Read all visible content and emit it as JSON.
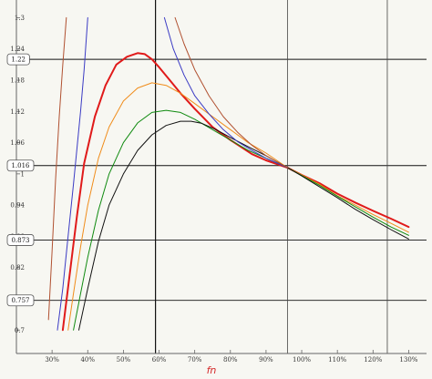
{
  "chart_data": {
    "type": "line",
    "xlabel": "fn",
    "ylabel": "",
    "title": "",
    "xlim": [
      0.2,
      1.35
    ],
    "ylim": [
      0.655,
      1.32
    ],
    "x_ticks": [
      {
        "v": 0.3,
        "label": "30%"
      },
      {
        "v": 0.4,
        "label": "40%"
      },
      {
        "v": 0.5,
        "label": "50%"
      },
      {
        "v": 0.6,
        "label": "60%"
      },
      {
        "v": 0.7,
        "label": "70%"
      },
      {
        "v": 0.8,
        "label": "80%"
      },
      {
        "v": 0.9,
        "label": "90%"
      },
      {
        "v": 1.0,
        "label": "100%"
      },
      {
        "v": 1.1,
        "label": "110%"
      },
      {
        "v": 1.2,
        "label": "120%"
      },
      {
        "v": 1.3,
        "label": "130%"
      }
    ],
    "y_ticks": [
      {
        "v": 0.7,
        "label": "0.7"
      },
      {
        "v": 0.76,
        "label": "0.76"
      },
      {
        "v": 0.82,
        "label": "0.82"
      },
      {
        "v": 0.88,
        "label": "0.88"
      },
      {
        "v": 0.94,
        "label": "0.94"
      },
      {
        "v": 1.0,
        "label": "1"
      },
      {
        "v": 1.06,
        "label": "1.06"
      },
      {
        "v": 1.12,
        "label": "1.12"
      },
      {
        "v": 1.18,
        "label": "1.18"
      },
      {
        "v": 1.24,
        "label": "1.24"
      },
      {
        "v": 1.3,
        "label": "1.3"
      }
    ],
    "marked_y": [
      {
        "v": 1.22,
        "label": "1.22"
      },
      {
        "v": 1.016,
        "label": "1.016"
      },
      {
        "v": 0.873,
        "label": "0.873"
      },
      {
        "v": 0.757,
        "label": "0.757"
      }
    ],
    "marked_x": [
      0.59,
      0.96,
      1.24
    ],
    "grid": false,
    "series": [
      {
        "color": "#b05030",
        "x": [
          0.29,
          0.3,
          0.31,
          0.32,
          0.33,
          0.34
        ],
        "y": [
          0.72,
          0.85,
          0.99,
          1.11,
          1.21,
          1.3
        ]
      },
      {
        "color": "#3b3bc4",
        "x": [
          0.315,
          0.33,
          0.345,
          0.36,
          0.37,
          0.38,
          0.39,
          0.4
        ],
        "y": [
          0.7,
          0.78,
          0.88,
          0.98,
          1.05,
          1.12,
          1.2,
          1.3
        ]
      },
      {
        "color": "#e01a1a",
        "x": [
          0.33,
          0.35,
          0.37,
          0.39,
          0.42,
          0.45,
          0.48,
          0.51,
          0.54,
          0.56,
          0.58,
          0.6,
          0.63,
          0.66,
          0.7,
          0.75,
          0.8,
          0.86,
          0.9,
          0.96,
          1.0,
          1.05,
          1.1,
          1.15,
          1.2,
          1.25,
          1.3
        ],
        "y": [
          0.7,
          0.81,
          0.92,
          1.02,
          1.11,
          1.17,
          1.21,
          1.225,
          1.232,
          1.23,
          1.22,
          1.205,
          1.18,
          1.155,
          1.125,
          1.09,
          1.065,
          1.038,
          1.026,
          1.012,
          0.998,
          0.982,
          0.962,
          0.945,
          0.929,
          0.914,
          0.898
        ]
      },
      {
        "color": "#f08c1a",
        "x": [
          0.345,
          0.36,
          0.38,
          0.4,
          0.43,
          0.46,
          0.5,
          0.54,
          0.58,
          0.62,
          0.66,
          0.7,
          0.75,
          0.8,
          0.85,
          0.9,
          0.96,
          1.0,
          1.05,
          1.1,
          1.15,
          1.2,
          1.25,
          1.3
        ],
        "y": [
          0.7,
          0.77,
          0.86,
          0.94,
          1.03,
          1.09,
          1.14,
          1.165,
          1.175,
          1.17,
          1.155,
          1.135,
          1.11,
          1.085,
          1.06,
          1.04,
          1.012,
          0.998,
          0.98,
          0.958,
          0.94,
          0.922,
          0.905,
          0.888
        ]
      },
      {
        "color": "#0f8a0f",
        "x": [
          0.36,
          0.38,
          0.4,
          0.43,
          0.46,
          0.5,
          0.54,
          0.58,
          0.62,
          0.66,
          0.7,
          0.75,
          0.8,
          0.85,
          0.9,
          0.96,
          1.0,
          1.05,
          1.1,
          1.15,
          1.2,
          1.25,
          1.3
        ],
        "y": [
          0.7,
          0.77,
          0.84,
          0.93,
          1.0,
          1.06,
          1.098,
          1.118,
          1.122,
          1.118,
          1.105,
          1.085,
          1.065,
          1.045,
          1.03,
          1.012,
          0.997,
          0.978,
          0.957,
          0.937,
          0.917,
          0.898,
          0.882
        ]
      },
      {
        "color": "#111111",
        "x": [
          0.375,
          0.4,
          0.43,
          0.46,
          0.5,
          0.54,
          0.58,
          0.62,
          0.66,
          0.69,
          0.72,
          0.76,
          0.8,
          0.85,
          0.9,
          0.96,
          1.0,
          1.05,
          1.1,
          1.15,
          1.2,
          1.25,
          1.3
        ],
        "y": [
          0.7,
          0.78,
          0.87,
          0.94,
          1.0,
          1.045,
          1.075,
          1.093,
          1.101,
          1.101,
          1.097,
          1.085,
          1.07,
          1.052,
          1.035,
          1.012,
          0.996,
          0.975,
          0.954,
          0.932,
          0.912,
          0.893,
          0.875
        ]
      },
      {
        "color": "#3b3bc4",
        "x": [
          0.615,
          0.64,
          0.67,
          0.7,
          0.74,
          0.78,
          0.82,
          0.86,
          0.9,
          0.96
        ],
        "y": [
          1.3,
          1.24,
          1.19,
          1.15,
          1.115,
          1.085,
          1.062,
          1.045,
          1.03,
          1.012
        ]
      },
      {
        "color": "#b05030",
        "x": [
          0.645,
          0.67,
          0.7,
          0.74,
          0.78,
          0.82,
          0.86,
          0.9,
          0.96
        ],
        "y": [
          1.3,
          1.25,
          1.2,
          1.15,
          1.11,
          1.08,
          1.055,
          1.035,
          1.012
        ]
      }
    ]
  }
}
